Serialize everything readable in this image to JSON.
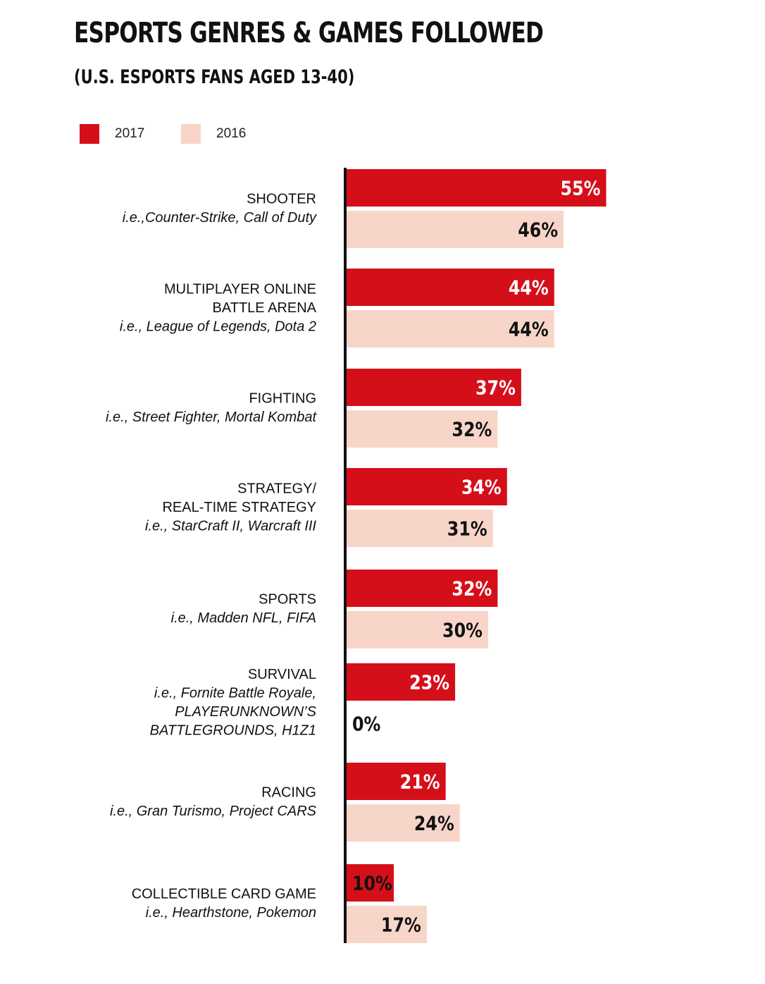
{
  "title": "ESPORTS GENRES & GAMES FOLLOWED",
  "subtitle": "(U.S. ESPORTS FANS AGED 13-40)",
  "colors": {
    "2017": "#d50f1a",
    "2016": "#f8d5c9",
    "axis": "#111111"
  },
  "chart_data": {
    "type": "bar",
    "orientation": "horizontal",
    "title": "ESPORTS GENRES & GAMES FOLLOWED",
    "subtitle": "(U.S. ESPORTS FANS AGED 13-40)",
    "legend_position": "top-left",
    "unit": "%",
    "xlim": [
      0,
      55
    ],
    "categories": [
      {
        "lines": [
          "SHOOTER"
        ],
        "examples": [
          "i.e.,Counter-Strike, Call of Duty"
        ]
      },
      {
        "lines": [
          "MULTIPLAYER ONLINE",
          "BATTLE ARENA"
        ],
        "examples": [
          "i.e., League of Legends, Dota 2"
        ]
      },
      {
        "lines": [
          "FIGHTING"
        ],
        "examples": [
          "i.e., Street Fighter, Mortal Kombat"
        ]
      },
      {
        "lines": [
          "STRATEGY/",
          "REAL-TIME STRATEGY"
        ],
        "examples": [
          "i.e., StarCraft II, Warcraft III"
        ]
      },
      {
        "lines": [
          "SPORTS"
        ],
        "examples": [
          "i.e., Madden NFL, FIFA"
        ]
      },
      {
        "lines": [
          "SURVIVAL"
        ],
        "examples": [
          "i.e., Fornite Battle Royale,",
          "PLAYERUNKNOWN’S",
          "BATTLEGROUNDS, H1Z1"
        ]
      },
      {
        "lines": [
          "RACING"
        ],
        "examples": [
          "i.e., Gran Turismo, Project CARS"
        ]
      },
      {
        "lines": [
          "COLLECTIBLE CARD GAME"
        ],
        "examples": [
          "i.e., Hearthstone, Pokemon"
        ]
      }
    ],
    "series": [
      {
        "name": "2017",
        "values": [
          55,
          44,
          37,
          34,
          32,
          23,
          21,
          10
        ],
        "labels": [
          "55%",
          "44%",
          "37%",
          "34%",
          "32%",
          "23%",
          "21%",
          "10%"
        ]
      },
      {
        "name": "2016",
        "values": [
          46,
          44,
          32,
          31,
          30,
          0,
          24,
          17
        ],
        "labels": [
          "46%",
          "44%",
          "32%",
          "31%",
          "30%",
          "0%",
          "24%",
          "17%"
        ]
      }
    ]
  }
}
